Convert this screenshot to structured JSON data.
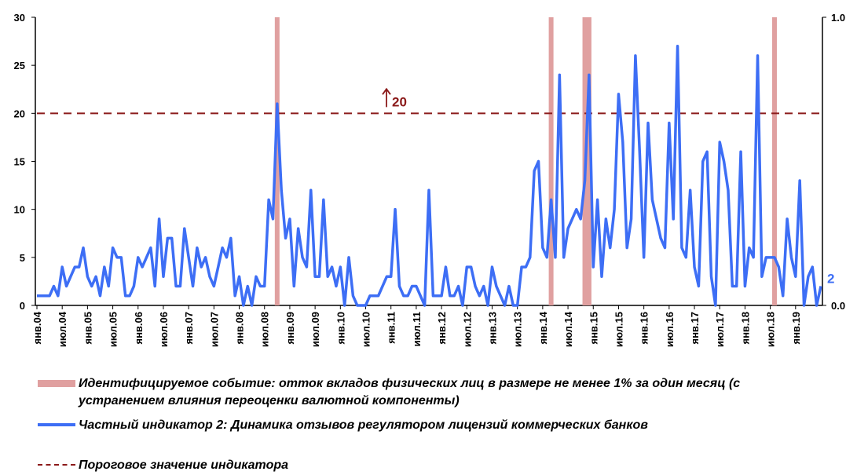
{
  "chart_data": {
    "type": "line",
    "categories": [
      "янв.04",
      null,
      null,
      null,
      null,
      null,
      "июл.04",
      null,
      null,
      null,
      null,
      null,
      "янв.05",
      null,
      null,
      null,
      null,
      null,
      "июл.05",
      null,
      null,
      null,
      null,
      null,
      "янв.06",
      null,
      null,
      null,
      null,
      null,
      "июл.06",
      null,
      null,
      null,
      null,
      null,
      "янв.07",
      null,
      null,
      null,
      null,
      null,
      "июл.07",
      null,
      null,
      null,
      null,
      null,
      "янв.08",
      null,
      null,
      null,
      null,
      null,
      "июл.08",
      null,
      null,
      null,
      null,
      null,
      "янв.09",
      null,
      null,
      null,
      null,
      null,
      "июл.09",
      null,
      null,
      null,
      null,
      null,
      "янв.10",
      null,
      null,
      null,
      null,
      null,
      "июл.10",
      null,
      null,
      null,
      null,
      null,
      "янв.11",
      null,
      null,
      null,
      null,
      null,
      "июл.11",
      null,
      null,
      null,
      null,
      null,
      "янв.12",
      null,
      null,
      null,
      null,
      null,
      "июл.12",
      null,
      null,
      null,
      null,
      null,
      "янв.13",
      null,
      null,
      null,
      null,
      null,
      "июл.13",
      null,
      null,
      null,
      null,
      null,
      "янв.14",
      null,
      null,
      null,
      null,
      null,
      "июл.14",
      null,
      null,
      null,
      null,
      null,
      "янв.15",
      null,
      null,
      null,
      null,
      null,
      "июл.15",
      null,
      null,
      null,
      null,
      null,
      "янв.16",
      null,
      null,
      null,
      null,
      null,
      "июл.16",
      null,
      null,
      null,
      null,
      null,
      "янв.17",
      null,
      null,
      null,
      null,
      null,
      "июл.17",
      null,
      null,
      null,
      null,
      null,
      "янв.18",
      null,
      null,
      null,
      null,
      null,
      "июл.18",
      null,
      null,
      null,
      null,
      null,
      "янв.19",
      null,
      null,
      null,
      null,
      null,
      null
    ],
    "series": [
      {
        "name": "Идентифицируемое событие: отток вкладов физических лиц в размере не менее 1% за один месяц (с устранением влияния переоценки валютной компоненты)",
        "type": "bar",
        "axis": "y2",
        "color": "#e0a0a0",
        "values": [
          0,
          0,
          0,
          0,
          0,
          0,
          0,
          0,
          0,
          0,
          0,
          0,
          0,
          0,
          0,
          0,
          0,
          0,
          0,
          0,
          0,
          0,
          0,
          0,
          0,
          0,
          0,
          0,
          0,
          0,
          0,
          0,
          0,
          0,
          0,
          0,
          0,
          0,
          0,
          0,
          0,
          0,
          0,
          0,
          0,
          0,
          0,
          0,
          0,
          0,
          0,
          0,
          0,
          0,
          0,
          0,
          0,
          1,
          0,
          0,
          0,
          0,
          0,
          0,
          0,
          0,
          0,
          0,
          0,
          0,
          0,
          0,
          0,
          0,
          0,
          0,
          0,
          0,
          0,
          0,
          0,
          0,
          0,
          0,
          0,
          0,
          0,
          0,
          0,
          0,
          0,
          0,
          0,
          0,
          0,
          0,
          0,
          0,
          0,
          0,
          0,
          0,
          0,
          0,
          0,
          0,
          0,
          0,
          0,
          0,
          0,
          0,
          0,
          0,
          0,
          0,
          0,
          0,
          0,
          0,
          0,
          0,
          1,
          0,
          0,
          0,
          0,
          0,
          0,
          0,
          1,
          1,
          0,
          0,
          0,
          0,
          0,
          0,
          0,
          0,
          0,
          0,
          0,
          0,
          0,
          0,
          0,
          0,
          0,
          0,
          0,
          0,
          0,
          0,
          0,
          0,
          0,
          0,
          0,
          0,
          0,
          0,
          0,
          0,
          0,
          0,
          0,
          0,
          0,
          0,
          0,
          0,
          0,
          0,
          0,
          1,
          0,
          0,
          0,
          0,
          0,
          0,
          0,
          0,
          0,
          0,
          0
        ]
      },
      {
        "name": "Частный индикатор 2: Динамика отзывов регулятором лицензий коммерческих банков",
        "type": "line",
        "color": "#3d6ef5",
        "values": [
          1,
          1,
          1,
          1,
          2,
          1,
          4,
          2,
          3,
          4,
          4,
          6,
          3,
          2,
          3,
          1,
          4,
          2,
          6,
          5,
          5,
          1,
          1,
          2,
          5,
          4,
          5,
          6,
          2,
          9,
          3,
          7,
          7,
          2,
          2,
          8,
          5,
          2,
          6,
          4,
          5,
          3,
          2,
          4,
          6,
          5,
          7,
          1,
          3,
          0,
          2,
          0,
          3,
          2,
          2,
          11,
          9,
          21,
          12,
          7,
          9,
          2,
          8,
          5,
          4,
          12,
          3,
          3,
          11,
          3,
          4,
          2,
          4,
          0,
          5,
          1,
          0,
          0,
          0,
          1,
          1,
          1,
          2,
          3,
          3,
          10,
          2,
          1,
          1,
          2,
          2,
          1,
          0,
          12,
          1,
          1,
          1,
          4,
          1,
          1,
          2,
          0,
          4,
          4,
          2,
          1,
          2,
          0,
          4,
          2,
          1,
          0,
          2,
          0,
          0,
          4,
          4,
          5,
          14,
          15,
          6,
          5,
          11,
          5,
          24,
          5,
          8,
          9,
          10,
          9,
          13,
          24,
          4,
          11,
          3,
          9,
          6,
          10,
          22,
          17,
          6,
          9,
          26,
          16,
          5,
          19,
          11,
          9,
          7,
          6,
          19,
          9,
          27,
          6,
          5,
          12,
          4,
          2,
          15,
          16,
          3,
          0,
          17,
          15,
          12,
          2,
          2,
          16,
          2,
          6,
          5,
          26,
          3,
          5,
          5,
          5,
          4,
          1,
          9,
          5,
          3,
          13,
          0,
          3,
          4,
          0,
          2
        ]
      }
    ],
    "threshold": {
      "name": "Пороговое значение индикатора",
      "value": 20,
      "color": "#8b1a1a"
    },
    "ylim": [
      0,
      30
    ],
    "yticks": [
      0,
      5,
      10,
      15,
      20,
      25,
      30
    ],
    "y2lim": [
      0,
      1
    ],
    "y2ticks": [
      {
        "value": 0,
        "label": "0.0"
      },
      {
        "value": 1,
        "label": "1.0"
      }
    ]
  }
}
